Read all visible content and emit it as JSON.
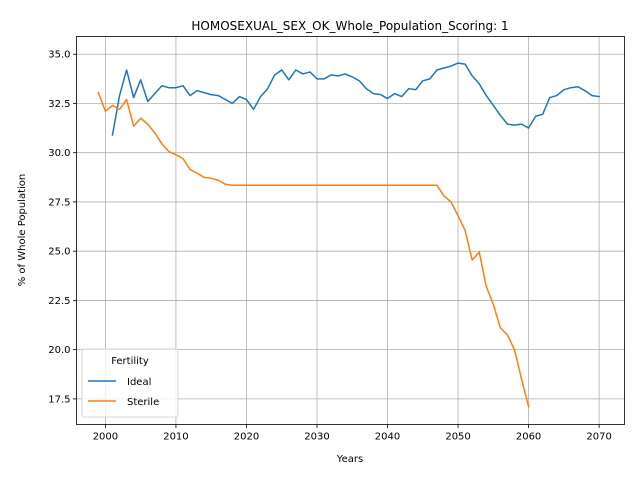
{
  "chart_data": {
    "type": "line",
    "title": "HOMOSEXUAL_SEX_OK_Whole_Population_Scoring: 1",
    "xlabel": "Years",
    "ylabel": "% of Whole Population",
    "xlim": [
      1995.9,
      2073.6
    ],
    "ylim": [
      16.2,
      35.9
    ],
    "xticks": [
      2000,
      2010,
      2020,
      2030,
      2040,
      2050,
      2060,
      2070
    ],
    "yticks": [
      17.5,
      20.0,
      22.5,
      25.0,
      27.5,
      30.0,
      32.5,
      35.0
    ],
    "grid": true,
    "legend": {
      "title": "Fertility",
      "position": "lower-left"
    },
    "series": [
      {
        "name": "Ideal",
        "color": "#1f77b4",
        "x": [
          2001,
          2002,
          2003,
          2004,
          2005,
          2006,
          2007,
          2008,
          2009,
          2010,
          2011,
          2012,
          2013,
          2014,
          2015,
          2016,
          2017,
          2018,
          2019,
          2020,
          2021,
          2022,
          2023,
          2024,
          2025,
          2026,
          2027,
          2028,
          2029,
          2030,
          2031,
          2032,
          2033,
          2034,
          2035,
          2036,
          2037,
          2038,
          2039,
          2040,
          2041,
          2042,
          2043,
          2044,
          2045,
          2046,
          2047,
          2048,
          2049,
          2050,
          2051,
          2052,
          2053,
          2054,
          2055,
          2056,
          2057,
          2058,
          2059,
          2060,
          2061,
          2062,
          2063,
          2064,
          2065,
          2066,
          2067,
          2068,
          2069,
          2070
        ],
        "y": [
          30.9,
          32.9,
          34.2,
          32.8,
          33.7,
          32.6,
          33.0,
          33.4,
          33.3,
          33.3,
          33.4,
          32.9,
          33.15,
          33.05,
          32.95,
          32.9,
          32.7,
          32.5,
          32.85,
          32.7,
          32.2,
          32.85,
          33.25,
          33.95,
          34.2,
          33.7,
          34.2,
          34.0,
          34.1,
          33.75,
          33.75,
          33.95,
          33.9,
          34.0,
          33.85,
          33.65,
          33.25,
          33.0,
          32.95,
          32.75,
          33.0,
          32.85,
          33.25,
          33.2,
          33.65,
          33.75,
          34.2,
          34.3,
          34.4,
          34.55,
          34.5,
          33.9,
          33.5,
          32.9,
          32.4,
          31.9,
          31.45,
          31.4,
          31.45,
          31.25,
          31.85,
          31.95,
          32.8,
          32.9,
          33.2,
          33.3,
          33.35,
          33.15,
          32.9,
          32.85
        ]
      },
      {
        "name": "Sterile",
        "color": "#ff7f0e",
        "x": [
          1999,
          2000,
          2001,
          2002,
          2003,
          2004,
          2005,
          2006,
          2007,
          2008,
          2009,
          2010,
          2011,
          2012,
          2013,
          2014,
          2015,
          2016,
          2017,
          2018,
          2019,
          2020,
          2021,
          2022,
          2023,
          2024,
          2025,
          2026,
          2027,
          2028,
          2029,
          2030,
          2031,
          2032,
          2033,
          2034,
          2035,
          2036,
          2037,
          2038,
          2039,
          2040,
          2041,
          2042,
          2043,
          2044,
          2045,
          2046,
          2047,
          2048,
          2049,
          2050,
          2051,
          2052,
          2053,
          2054,
          2055,
          2056,
          2057,
          2058,
          2059,
          2060
        ],
        "y": [
          33.05,
          32.1,
          32.4,
          32.2,
          32.7,
          31.35,
          31.75,
          31.45,
          31.0,
          30.45,
          30.05,
          29.9,
          29.7,
          29.15,
          28.95,
          28.75,
          28.7,
          28.6,
          28.4,
          28.35,
          28.35,
          28.35,
          28.35,
          28.35,
          28.35,
          28.35,
          28.35,
          28.35,
          28.35,
          28.35,
          28.35,
          28.35,
          28.35,
          28.35,
          28.35,
          28.35,
          28.35,
          28.35,
          28.35,
          28.35,
          28.35,
          28.35,
          28.35,
          28.35,
          28.35,
          28.35,
          28.35,
          28.35,
          28.35,
          27.8,
          27.5,
          26.8,
          26.05,
          24.55,
          24.95,
          23.2,
          22.3,
          21.1,
          20.75,
          20.0,
          18.5,
          17.1
        ]
      }
    ]
  }
}
